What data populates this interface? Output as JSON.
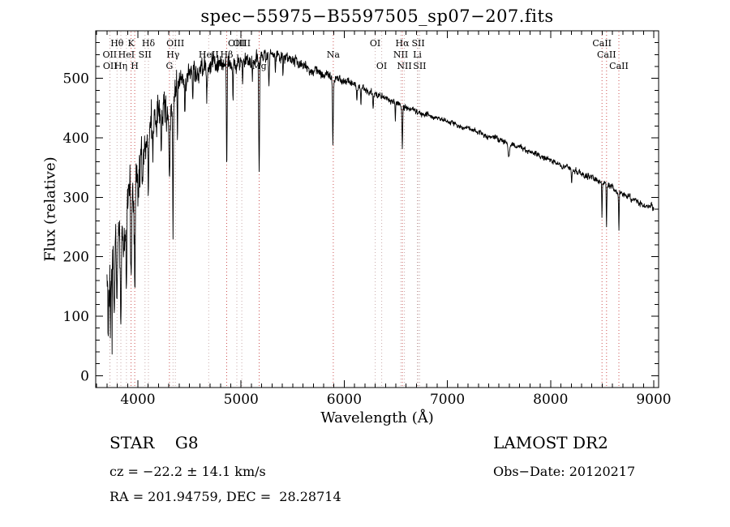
{
  "figure": {
    "background": "#ffffff"
  },
  "chart_data": {
    "type": "line",
    "title": "spec−55975−B5597505_sp07−207.fits",
    "xlabel": "Wavelength (Å)",
    "ylabel": "Flux (relative)",
    "xlim": [
      3591,
      9047
    ],
    "ylim": [
      -20,
      580
    ],
    "xticks": [
      4000,
      5000,
      6000,
      7000,
      8000,
      9000
    ],
    "yticks": [
      0,
      100,
      200,
      300,
      400,
      500
    ],
    "x_minor_step": 100,
    "y_minor_step": 20,
    "series_color": "#000000",
    "marker_colors": {
      "normal": "#c9aaaa",
      "strong": "#cc5050"
    },
    "continuum": [
      [
        3700,
        165
      ],
      [
        3720,
        172
      ],
      [
        3740,
        180
      ],
      [
        3760,
        192
      ],
      [
        3780,
        203
      ],
      [
        3800,
        215
      ],
      [
        3830,
        233
      ],
      [
        3860,
        248
      ],
      [
        3900,
        266
      ],
      [
        3940,
        284
      ],
      [
        3980,
        308
      ],
      [
        4020,
        345
      ],
      [
        4060,
        378
      ],
      [
        4100,
        400
      ],
      [
        4150,
        424
      ],
      [
        4200,
        437
      ],
      [
        4250,
        448
      ],
      [
        4300,
        458
      ],
      [
        4350,
        472
      ],
      [
        4400,
        488
      ],
      [
        4450,
        498
      ],
      [
        4500,
        506
      ],
      [
        4550,
        512
      ],
      [
        4600,
        516
      ],
      [
        4650,
        519
      ],
      [
        4700,
        522
      ],
      [
        4750,
        527
      ],
      [
        4800,
        529
      ],
      [
        4850,
        528
      ],
      [
        4900,
        526
      ],
      [
        4950,
        528
      ],
      [
        5000,
        529
      ],
      [
        5050,
        530
      ],
      [
        5100,
        531
      ],
      [
        5150,
        532
      ],
      [
        5200,
        535
      ],
      [
        5250,
        537
      ],
      [
        5300,
        539
      ],
      [
        5350,
        540
      ],
      [
        5400,
        538
      ],
      [
        5450,
        535
      ],
      [
        5500,
        531
      ],
      [
        5550,
        527
      ],
      [
        5600,
        522
      ],
      [
        5650,
        518
      ],
      [
        5700,
        514
      ],
      [
        5750,
        510
      ],
      [
        5800,
        506
      ],
      [
        5850,
        502
      ],
      [
        5900,
        499
      ],
      [
        5950,
        497
      ],
      [
        6000,
        495
      ],
      [
        6050,
        492
      ],
      [
        6100,
        489
      ],
      [
        6150,
        485
      ],
      [
        6200,
        481
      ],
      [
        6250,
        478
      ],
      [
        6300,
        474
      ],
      [
        6350,
        470
      ],
      [
        6400,
        466
      ],
      [
        6450,
        462
      ],
      [
        6500,
        458
      ],
      [
        6550,
        454
      ],
      [
        6600,
        450
      ],
      [
        6650,
        447
      ],
      [
        6700,
        444
      ],
      [
        6750,
        441
      ],
      [
        6800,
        438
      ],
      [
        6850,
        435
      ],
      [
        6900,
        432
      ],
      [
        6950,
        430
      ],
      [
        7000,
        428
      ],
      [
        7100,
        422
      ],
      [
        7200,
        415
      ],
      [
        7300,
        409
      ],
      [
        7400,
        402
      ],
      [
        7500,
        396
      ],
      [
        7600,
        389
      ],
      [
        7700,
        383
      ],
      [
        7800,
        376
      ],
      [
        7900,
        369
      ],
      [
        8000,
        362
      ],
      [
        8100,
        354
      ],
      [
        8200,
        347
      ],
      [
        8300,
        340
      ],
      [
        8400,
        333
      ],
      [
        8500,
        325
      ],
      [
        8600,
        316
      ],
      [
        8700,
        306
      ],
      [
        8800,
        297
      ],
      [
        8900,
        289
      ],
      [
        9000,
        282
      ]
    ],
    "noise_envelope": [
      [
        3700,
        95
      ],
      [
        3750,
        90
      ],
      [
        3800,
        85
      ],
      [
        3850,
        78
      ],
      [
        3900,
        72
      ],
      [
        3950,
        66
      ],
      [
        4000,
        60
      ],
      [
        4100,
        52
      ],
      [
        4200,
        45
      ],
      [
        4300,
        40
      ],
      [
        4400,
        33
      ],
      [
        4500,
        27
      ],
      [
        4600,
        24
      ],
      [
        4800,
        21
      ],
      [
        5000,
        17
      ],
      [
        5200,
        15
      ],
      [
        5400,
        13
      ],
      [
        5600,
        11
      ],
      [
        5800,
        10
      ],
      [
        6000,
        9
      ],
      [
        6300,
        8
      ],
      [
        6600,
        7
      ],
      [
        7000,
        6
      ],
      [
        7500,
        6
      ],
      [
        8000,
        6
      ],
      [
        8500,
        7
      ],
      [
        9000,
        8
      ]
    ],
    "absorption_lines": [
      [
        3712,
        60,
        4
      ],
      [
        3734,
        72,
        4
      ],
      [
        3750,
        82,
        4
      ],
      [
        3771,
        92,
        4
      ],
      [
        3798,
        102,
        5
      ],
      [
        3835,
        112,
        5
      ],
      [
        3889,
        122,
        5
      ],
      [
        3934,
        160,
        6
      ],
      [
        3969,
        160,
        6
      ],
      [
        4045,
        60,
        4
      ],
      [
        4102,
        120,
        5
      ],
      [
        4144,
        70,
        4
      ],
      [
        4226,
        85,
        4
      ],
      [
        4306,
        110,
        7
      ],
      [
        4340,
        235,
        5
      ],
      [
        4383,
        90,
        4
      ],
      [
        4455,
        55,
        4
      ],
      [
        4531,
        45,
        4
      ],
      [
        4668,
        40,
        4
      ],
      [
        4861,
        178,
        5
      ],
      [
        4921,
        55,
        4
      ],
      [
        5015,
        45,
        4
      ],
      [
        5110,
        40,
        4
      ],
      [
        5175,
        192,
        6
      ],
      [
        5270,
        55,
        5
      ],
      [
        5332,
        35,
        4
      ],
      [
        5406,
        30,
        4
      ],
      [
        5890,
        110,
        5
      ],
      [
        6122,
        25,
        4
      ],
      [
        6162,
        25,
        4
      ],
      [
        6280,
        20,
        5
      ],
      [
        6495,
        30,
        4
      ],
      [
        6563,
        72,
        5
      ],
      [
        7594,
        22,
        10
      ],
      [
        8204,
        20,
        5
      ],
      [
        8498,
        58,
        4
      ],
      [
        8542,
        76,
        4
      ],
      [
        8662,
        64,
        4
      ]
    ],
    "line_markers": [
      {
        "label": "Hθ",
        "wl": 3798,
        "row": 0,
        "strong": false
      },
      {
        "label": "K",
        "wl": 3934,
        "row": 0,
        "strong": true
      },
      {
        "label": "Hδ",
        "wl": 4102,
        "row": 0,
        "strong": false
      },
      {
        "label": "OIII",
        "wl": 4363,
        "row": 0,
        "strong": false
      },
      {
        "label": "OIII",
        "wl": 4959,
        "row": 0,
        "strong": false
      },
      {
        "label": "OIII",
        "wl": 5007,
        "row": 0,
        "strong": false
      },
      {
        "label": "OI",
        "wl": 6300,
        "row": 0,
        "strong": false
      },
      {
        "label": "Hα",
        "wl": 6563,
        "row": 0,
        "strong": true
      },
      {
        "label": "SII",
        "wl": 6717,
        "row": 0,
        "strong": false
      },
      {
        "label": "CaII",
        "wl": 8498,
        "row": 0,
        "strong": true
      },
      {
        "label": "OII",
        "wl": 3727,
        "row": 1,
        "strong": false
      },
      {
        "label": "HeI",
        "wl": 3889,
        "row": 1,
        "strong": false
      },
      {
        "label": "SII",
        "wl": 4069,
        "row": 1,
        "strong": false
      },
      {
        "label": "Hγ",
        "wl": 4340,
        "row": 1,
        "strong": false
      },
      {
        "label": "HeII",
        "wl": 4686,
        "row": 1,
        "strong": false
      },
      {
        "label": "Hβ",
        "wl": 4861,
        "row": 1,
        "strong": true
      },
      {
        "label": "Na",
        "wl": 5894,
        "row": 1,
        "strong": true
      },
      {
        "label": "NII",
        "wl": 6548,
        "row": 1,
        "strong": false
      },
      {
        "label": "Li",
        "wl": 6708,
        "row": 1,
        "strong": false
      },
      {
        "label": "CaII",
        "wl": 8542,
        "row": 1,
        "strong": true
      },
      {
        "label": "OII",
        "wl": 3730,
        "row": 2,
        "strong": false
      },
      {
        "label": "Hη",
        "wl": 3835,
        "row": 2,
        "strong": false
      },
      {
        "label": "H",
        "wl": 3969,
        "row": 2,
        "strong": true
      },
      {
        "label": "G",
        "wl": 4306,
        "row": 2,
        "strong": true
      },
      {
        "label": "Mg",
        "wl": 5175,
        "row": 2,
        "strong": true
      },
      {
        "label": "OI",
        "wl": 6363,
        "row": 2,
        "strong": false
      },
      {
        "label": "NII",
        "wl": 6583,
        "row": 2,
        "strong": false
      },
      {
        "label": "SII",
        "wl": 6731,
        "row": 2,
        "strong": false
      },
      {
        "label": "CaII",
        "wl": 8662,
        "row": 2,
        "strong": true
      }
    ]
  },
  "footer": {
    "class_label": "STAR    G8",
    "survey": "LAMOST DR2",
    "cz": "cz = −22.2 ± 14.1 km/s",
    "obs_date": "Obs−Date: 20120217",
    "coords": "RA = 201.94759, DEC =  28.28714"
  }
}
